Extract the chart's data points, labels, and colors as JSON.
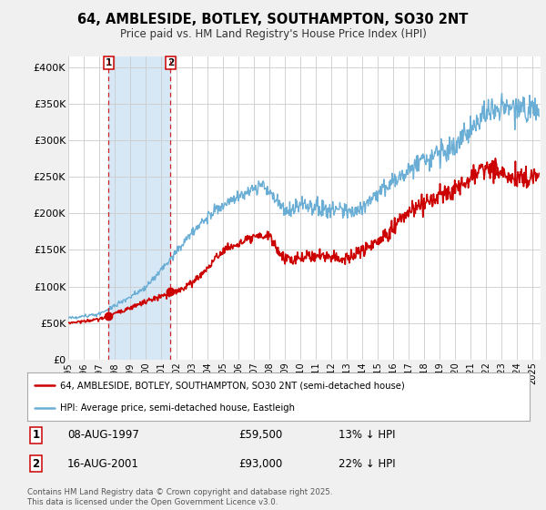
{
  "title": "64, AMBLESIDE, BOTLEY, SOUTHAMPTON, SO30 2NT",
  "subtitle": "Price paid vs. HM Land Registry's House Price Index (HPI)",
  "ylabel_ticks": [
    "£0",
    "£50K",
    "£100K",
    "£150K",
    "£200K",
    "£250K",
    "£300K",
    "£350K",
    "£400K"
  ],
  "ytick_vals": [
    0,
    50000,
    100000,
    150000,
    200000,
    250000,
    300000,
    350000,
    400000
  ],
  "ylim": [
    0,
    415000
  ],
  "xlim_start": 1995.0,
  "xlim_end": 2025.5,
  "hpi_color": "#6aaed6",
  "hpi_shade_color": "#d6e8f5",
  "price_color": "#cc0000",
  "marker1_date": 1997.6,
  "marker1_price": 59500,
  "marker1_label": "08-AUG-1997",
  "marker1_pct": "13% ↓ HPI",
  "marker2_date": 2001.6,
  "marker2_price": 93000,
  "marker2_label": "16-AUG-2001",
  "marker2_pct": "22% ↓ HPI",
  "legend_line1": "64, AMBLESIDE, BOTLEY, SOUTHAMPTON, SO30 2NT (semi-detached house)",
  "legend_line2": "HPI: Average price, semi-detached house, Eastleigh",
  "footnote": "Contains HM Land Registry data © Crown copyright and database right 2025.\nThis data is licensed under the Open Government Licence v3.0.",
  "background_color": "#f0f0f0",
  "plot_background": "#ffffff",
  "grid_color": "#cccccc"
}
